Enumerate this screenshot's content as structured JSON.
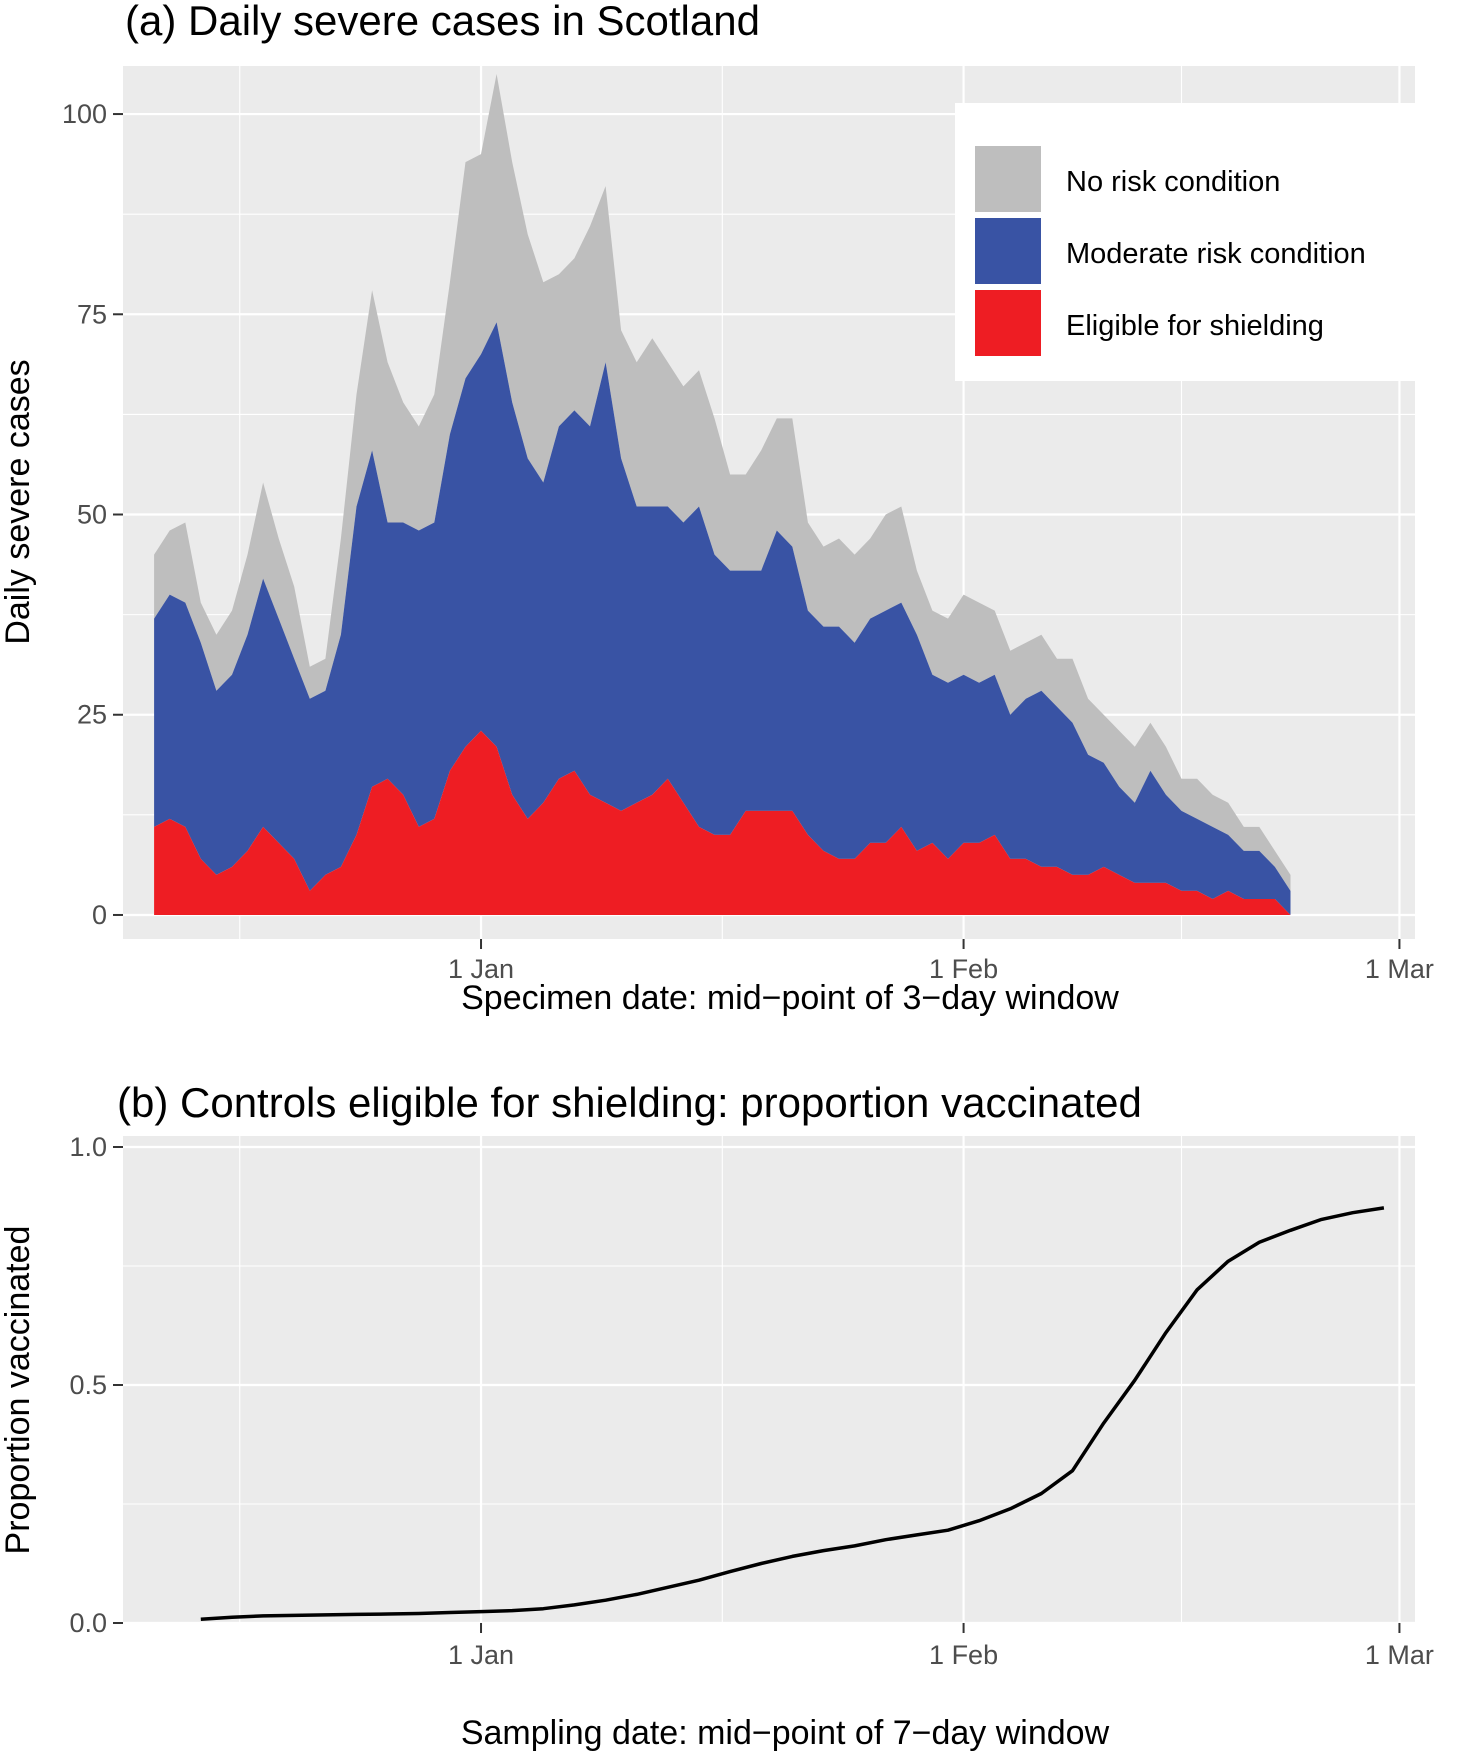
{
  "chart_data": [
    {
      "id": "panel_a",
      "type": "area",
      "stacked": true,
      "title": "(a) Daily severe cases in Scotland",
      "xlabel": "Specimen date: mid−point of 3−day window",
      "ylabel": "Daily severe cases",
      "x_start": "2020-12-11",
      "xlim": [
        "2020-12-09",
        "2021-03-02"
      ],
      "ylim": [
        -3,
        106
      ],
      "x_ticks": [
        {
          "label": "1 Jan",
          "date": "2021-01-01"
        },
        {
          "label": "1 Feb",
          "date": "2021-02-01"
        },
        {
          "label": "1 Mar",
          "date": "2021-03-01"
        }
      ],
      "y_ticks": [
        0,
        25,
        50,
        75,
        100
      ],
      "grid": true,
      "legend_position": "top-right",
      "colors": {
        "panel_bg": "#EBEBEB",
        "grid": "#FFFFFF",
        "tick": "#333333"
      },
      "series": [
        {
          "name": "No risk condition",
          "color": "#BEBEBE",
          "values": [
            8,
            8,
            10,
            5,
            7,
            8,
            10,
            12,
            10,
            9,
            4,
            4,
            12,
            14,
            20,
            20,
            15,
            13,
            16,
            19,
            27,
            25,
            31,
            30,
            28,
            25,
            19,
            19,
            25,
            22,
            16,
            18,
            21,
            18,
            17,
            17,
            17,
            12,
            12,
            15,
            14,
            16,
            11,
            10,
            11,
            11,
            10,
            12,
            12,
            8,
            8,
            8,
            10,
            10,
            8,
            8,
            7,
            7,
            6,
            8,
            7,
            6,
            7,
            7,
            6,
            6,
            4,
            5,
            4,
            4,
            3,
            3,
            2,
            2
          ]
        },
        {
          "name": "Moderate risk condition",
          "color": "#3953A4",
          "values": [
            26,
            28,
            28,
            27,
            23,
            24,
            27,
            31,
            28,
            25,
            24,
            23,
            29,
            41,
            42,
            32,
            34,
            37,
            37,
            42,
            46,
            47,
            53,
            49,
            45,
            40,
            44,
            45,
            46,
            55,
            44,
            37,
            36,
            34,
            35,
            40,
            35,
            33,
            30,
            30,
            35,
            33,
            28,
            28,
            29,
            27,
            28,
            29,
            28,
            27,
            21,
            22,
            21,
            20,
            20,
            18,
            20,
            22,
            20,
            19,
            15,
            13,
            11,
            10,
            14,
            11,
            10,
            9,
            9,
            7,
            6,
            6,
            4,
            3
          ]
        },
        {
          "name": "Eligible for shielding",
          "color": "#EE1D23",
          "values": [
            11,
            12,
            11,
            7,
            5,
            6,
            8,
            11,
            9,
            7,
            3,
            5,
            6,
            10,
            16,
            17,
            15,
            11,
            12,
            18,
            21,
            23,
            21,
            15,
            12,
            14,
            17,
            18,
            15,
            14,
            13,
            14,
            15,
            17,
            14,
            11,
            10,
            10,
            13,
            13,
            13,
            13,
            10,
            8,
            7,
            7,
            9,
            9,
            11,
            8,
            9,
            7,
            9,
            9,
            10,
            7,
            7,
            6,
            6,
            5,
            5,
            6,
            5,
            4,
            4,
            4,
            3,
            3,
            2,
            3,
            2,
            2,
            2,
            0
          ]
        }
      ],
      "legend_order": [
        "No risk condition",
        "Moderate risk condition",
        "Eligible for shielding"
      ]
    },
    {
      "id": "panel_b",
      "type": "line",
      "title": "(b) Controls eligible for shielding: proportion vaccinated",
      "xlabel": "Sampling date: mid−point of 7−day window",
      "ylabel": "Proportion vaccinated",
      "xlim": [
        "2020-12-09",
        "2021-03-02"
      ],
      "ylim": [
        0,
        1
      ],
      "x_ticks": [
        {
          "label": "1 Jan",
          "date": "2021-01-01"
        },
        {
          "label": "1 Feb",
          "date": "2021-02-01"
        },
        {
          "label": "1 Mar",
          "date": "2021-03-01"
        }
      ],
      "y_ticks": [
        0.0,
        0.5,
        1.0
      ],
      "y_tick_labels": [
        "0.0",
        "0.5",
        "1.0"
      ],
      "grid": true,
      "colors": {
        "panel_bg": "#EBEBEB",
        "grid": "#FFFFFF",
        "line": "#000000"
      },
      "series": [
        {
          "name": "",
          "x": [
            "2020-12-14",
            "2020-12-16",
            "2020-12-18",
            "2020-12-20",
            "2020-12-22",
            "2020-12-24",
            "2020-12-26",
            "2020-12-28",
            "2020-12-30",
            "2021-01-01",
            "2021-01-03",
            "2021-01-05",
            "2021-01-07",
            "2021-01-09",
            "2021-01-11",
            "2021-01-13",
            "2021-01-15",
            "2021-01-17",
            "2021-01-19",
            "2021-01-21",
            "2021-01-23",
            "2021-01-25",
            "2021-01-27",
            "2021-01-29",
            "2021-01-31",
            "2021-02-02",
            "2021-02-04",
            "2021-02-06",
            "2021-02-08",
            "2021-02-10",
            "2021-02-12",
            "2021-02-14",
            "2021-02-16",
            "2021-02-18",
            "2021-02-20",
            "2021-02-22",
            "2021-02-24",
            "2021-02-26",
            "2021-02-28"
          ],
          "values": [
            0.008,
            0.012,
            0.015,
            0.016,
            0.017,
            0.018,
            0.019,
            0.02,
            0.022,
            0.024,
            0.026,
            0.03,
            0.038,
            0.048,
            0.06,
            0.075,
            0.09,
            0.108,
            0.125,
            0.14,
            0.152,
            0.162,
            0.175,
            0.185,
            0.195,
            0.215,
            0.24,
            0.272,
            0.32,
            0.42,
            0.51,
            0.61,
            0.7,
            0.76,
            0.8,
            0.825,
            0.848,
            0.862,
            0.872
          ]
        }
      ]
    }
  ]
}
